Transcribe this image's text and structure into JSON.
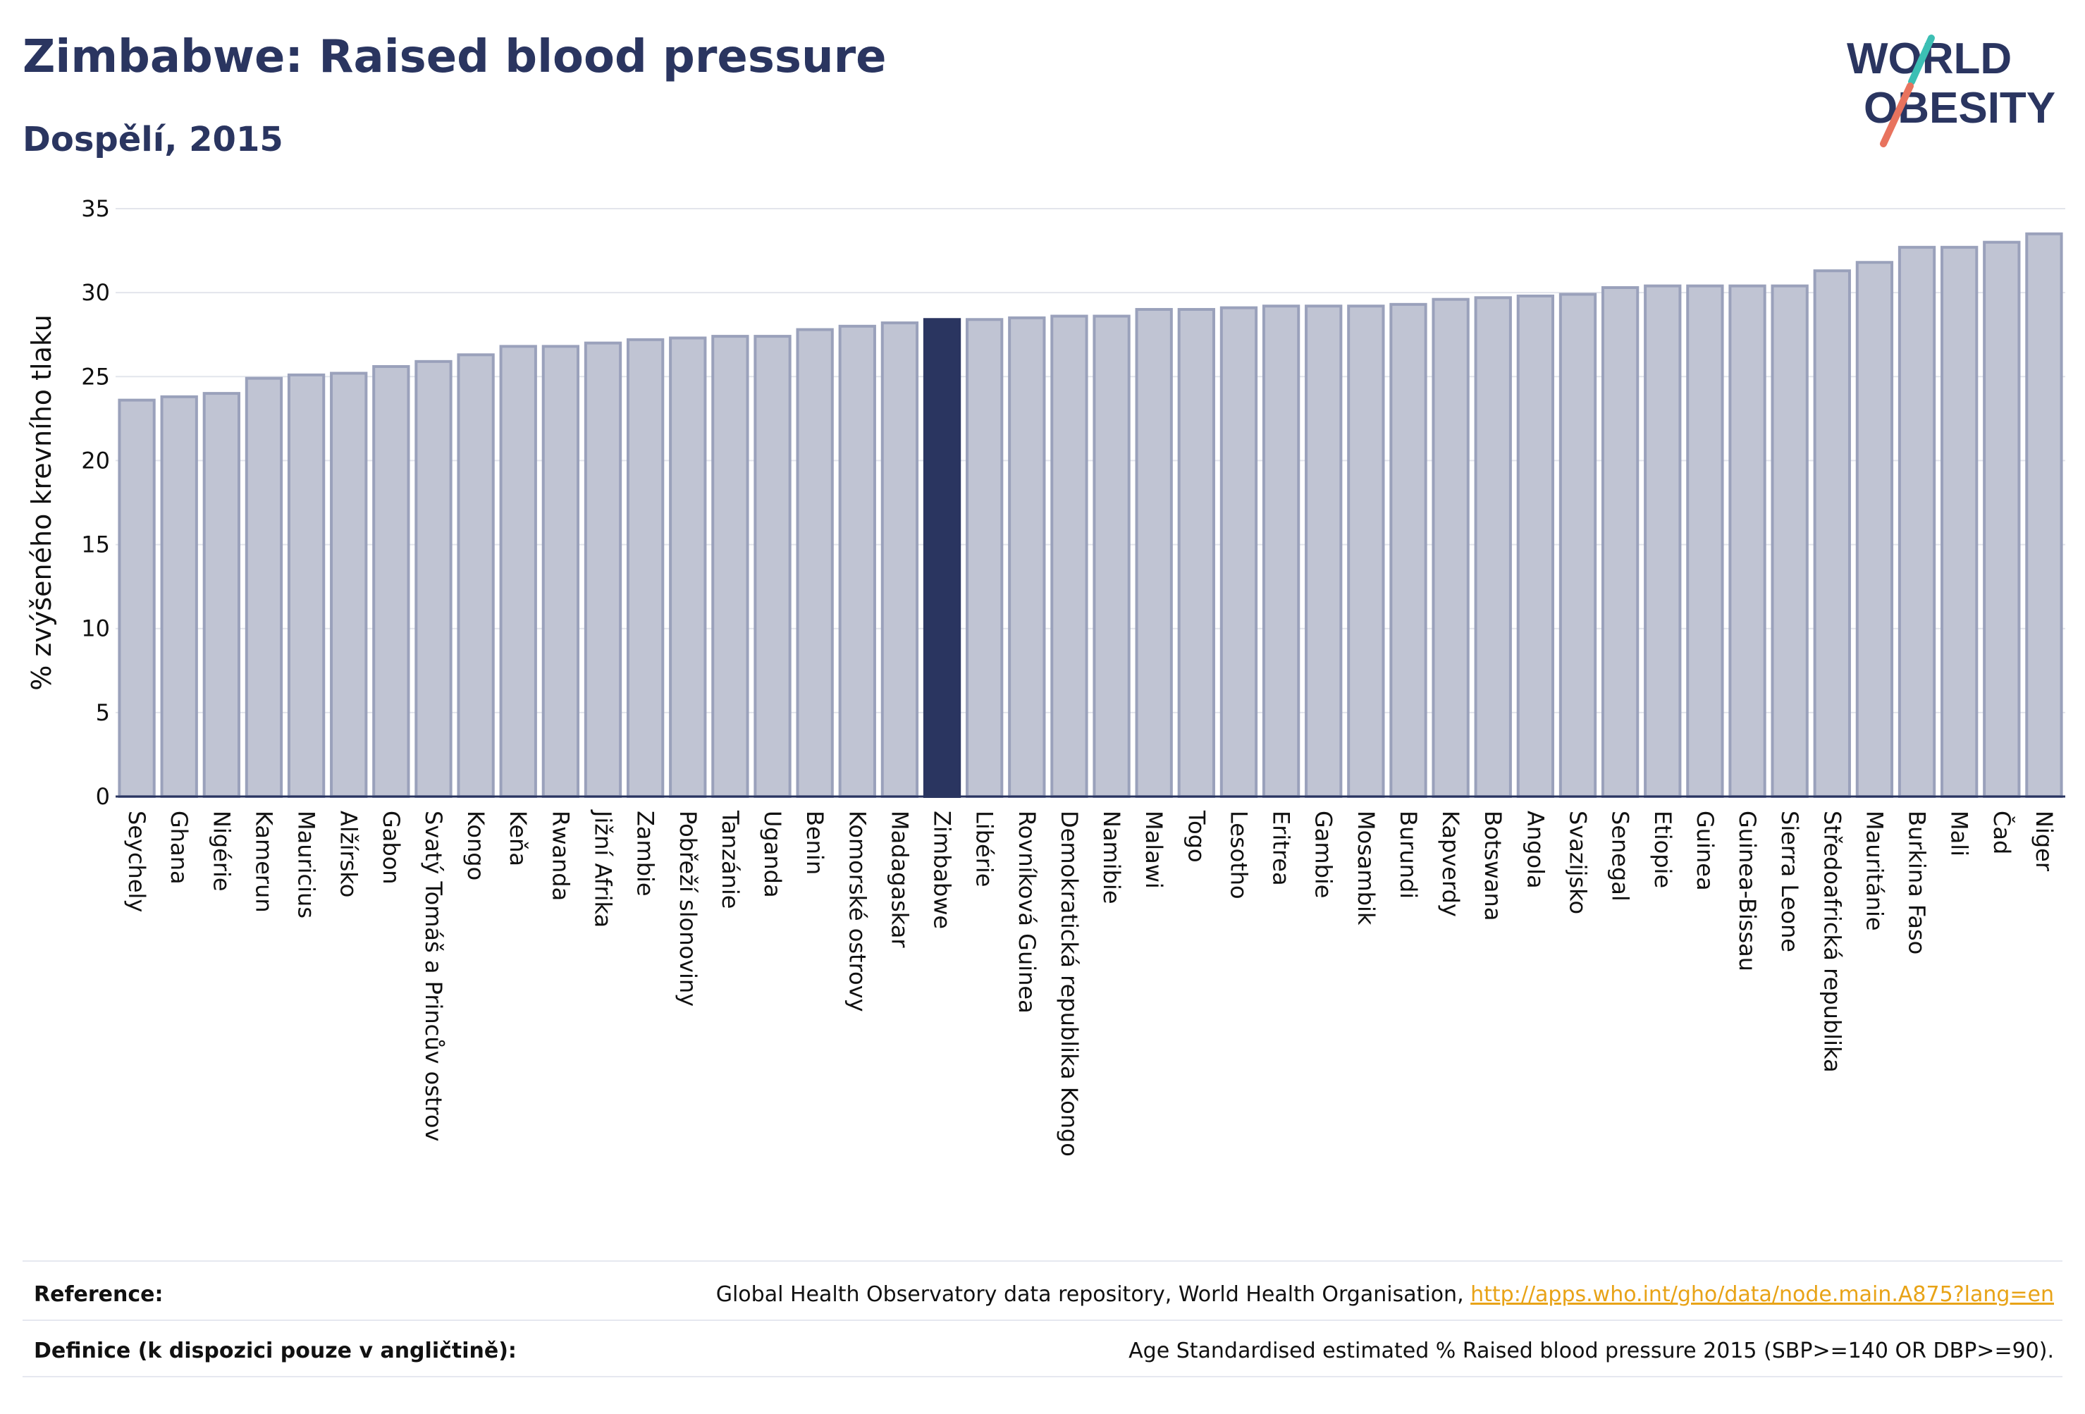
{
  "header": {
    "title": "Zimbabwe: Raised blood pressure",
    "subtitle": "Dospělí, 2015"
  },
  "logo": {
    "line1": "WORLD",
    "line2": "OBESITY",
    "colors": {
      "text": "#2a3560",
      "slash_top": "#3cbfb4",
      "slash_bottom": "#e8735e"
    }
  },
  "colors": {
    "bar": "#c0c4d3",
    "bar_stroke": "#9aa1bb",
    "highlight": "#2a3560",
    "grid": "#e3e5ec",
    "axis": "#2a3560"
  },
  "chart_data": {
    "type": "bar",
    "ylabel": "% zvýšeného krevního tlaku",
    "ylim": [
      0,
      35
    ],
    "yticks": [
      0,
      5,
      10,
      15,
      20,
      25,
      30,
      35
    ],
    "grid": true,
    "highlight": "Zimbabwe",
    "categories": [
      "Seychely",
      "Ghana",
      "Nigérie",
      "Kamerun",
      "Mauricius",
      "Alžírsko",
      "Gabon",
      "Svatý Tomáš a Princův ostrov",
      "Kongo",
      "Keňa",
      "Rwanda",
      "Jižní Afrika",
      "Zambie",
      "Pobřeží slonoviny",
      "Tanzánie",
      "Uganda",
      "Benin",
      "Komorské ostrovy",
      "Madagaskar",
      "Zimbabwe",
      "Libérie",
      "Rovníková Guinea",
      "Demokratická republika Kongo",
      "Namibie",
      "Malawi",
      "Togo",
      "Lesotho",
      "Eritrea",
      "Gambie",
      "Mosambik",
      "Burundi",
      "Kapverdy",
      "Botswana",
      "Angola",
      "Svazijsko",
      "Senegal",
      "Etiopie",
      "Guinea",
      "Guinea-Bissau",
      "Sierra Leone",
      "Středoafrická republika",
      "Mauritánie",
      "Burkina Faso",
      "Mali",
      "Čad",
      "Niger"
    ],
    "values": [
      23.6,
      23.8,
      24.0,
      24.9,
      25.1,
      25.2,
      25.6,
      25.9,
      26.3,
      26.8,
      26.8,
      27.0,
      27.2,
      27.3,
      27.4,
      27.4,
      27.8,
      28.0,
      28.2,
      28.4,
      28.4,
      28.5,
      28.6,
      28.6,
      29.0,
      29.0,
      29.1,
      29.2,
      29.2,
      29.2,
      29.3,
      29.6,
      29.7,
      29.8,
      29.9,
      30.3,
      30.4,
      30.4,
      30.4,
      30.4,
      31.3,
      31.8,
      32.7,
      32.7,
      33.0,
      33.5
    ]
  },
  "footer": {
    "reference_label": "Reference:",
    "reference_text": "Global Health Observatory data repository, World Health Organisation, ",
    "reference_link": "http://apps.who.int/gho/data/node.main.A875?lang=en",
    "definition_label": "Definice (k dispozici pouze v angličtině):",
    "definition_text": "Age Standardised estimated % Raised blood pressure 2015 (SBP>=140 OR DBP>=90)."
  }
}
